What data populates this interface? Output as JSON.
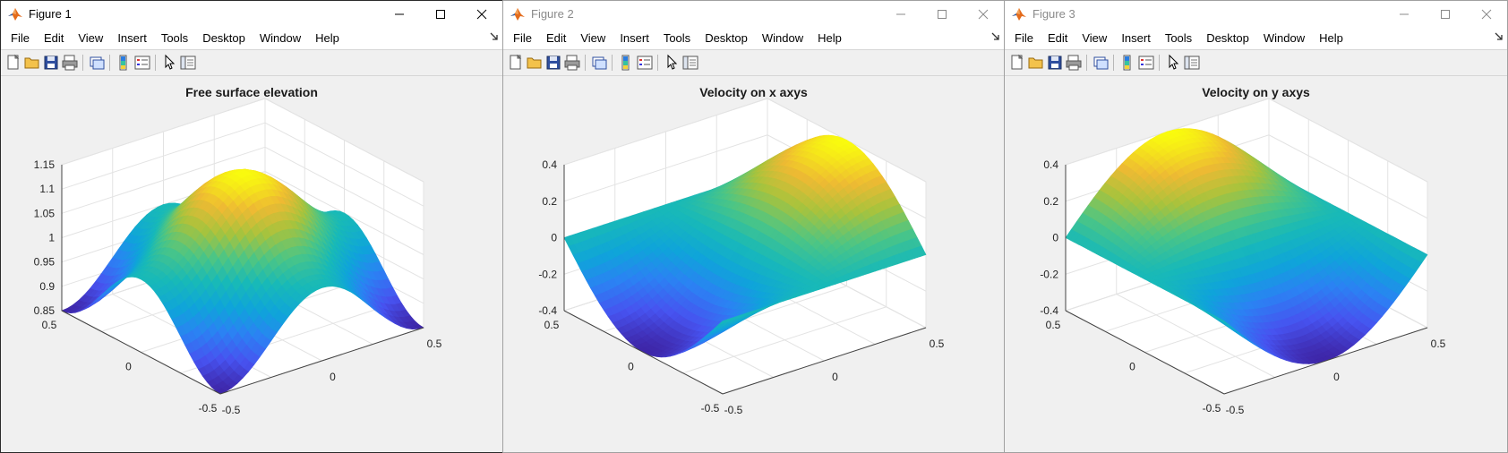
{
  "menu_labels": [
    "File",
    "Edit",
    "View",
    "Insert",
    "Tools",
    "Desktop",
    "Window",
    "Help"
  ],
  "toolbar_icons": [
    "new-figure-icon",
    "open-file-icon",
    "save-icon",
    "print-icon",
    "link-plot-icon",
    "colorbar-icon",
    "legend-icon",
    "edit-plot-pointer-icon",
    "property-inspector-icon"
  ],
  "colors": {
    "parula_low": "#3e26a8",
    "parula_mid": "#1fb5c4",
    "parula_high": "#f9fb0e",
    "active_border": "#2b2b2b"
  },
  "figures": [
    {
      "window_title": "Figure 1",
      "active": true,
      "plot_title": "Free surface elevation",
      "chart_data": {
        "type": "surface",
        "title": "Free surface elevation",
        "x_ticks": [
          "-0.5",
          "0",
          "0.5"
        ],
        "y_ticks": [
          "-0.5",
          "0",
          "0.5"
        ],
        "z_ticks": [
          "0.85",
          "0.9",
          "0.95",
          "1",
          "1.05",
          "1.1",
          "1.15"
        ],
        "xlim": [
          -0.5,
          0.5
        ],
        "ylim": [
          -0.5,
          0.5
        ],
        "zlim": [
          0.85,
          1.15
        ],
        "grid": true,
        "colormap": "parula"
      }
    },
    {
      "window_title": "Figure 2",
      "active": false,
      "plot_title": "Velocity on x axys",
      "chart_data": {
        "type": "surface",
        "title": "Velocity on x axys",
        "x_ticks": [
          "-0.5",
          "0",
          "0.5"
        ],
        "y_ticks": [
          "-0.5",
          "0",
          "0.5"
        ],
        "z_ticks": [
          "-0.4",
          "-0.2",
          "0",
          "0.2",
          "0.4"
        ],
        "xlim": [
          -0.5,
          0.5
        ],
        "ylim": [
          -0.5,
          0.5
        ],
        "zlim": [
          -0.4,
          0.4
        ],
        "grid": true,
        "colormap": "parula"
      }
    },
    {
      "window_title": "Figure 3",
      "active": false,
      "plot_title": "Velocity on y axys",
      "chart_data": {
        "type": "surface",
        "title": "Velocity on y axys",
        "x_ticks": [
          "-0.5",
          "0",
          "0.5"
        ],
        "y_ticks": [
          "-0.5",
          "0",
          "0.5"
        ],
        "z_ticks": [
          "-0.4",
          "-0.2",
          "0",
          "0.2",
          "0.4"
        ],
        "xlim": [
          -0.5,
          0.5
        ],
        "ylim": [
          -0.5,
          0.5
        ],
        "zlim": [
          -0.4,
          0.4
        ],
        "grid": true,
        "colormap": "parula"
      }
    }
  ]
}
